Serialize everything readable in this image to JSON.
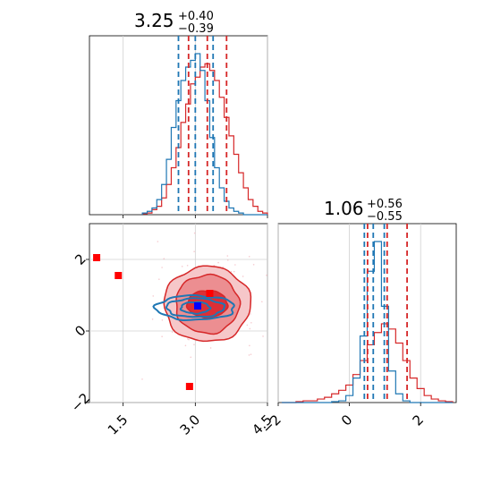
{
  "figure": {
    "background": "#ffffff",
    "colors": {
      "red": "#d62728",
      "blue": "#1f77b4",
      "marker_red": "#ff0000",
      "marker_blue": "#0000ff",
      "grid": "#d0d0d0"
    }
  },
  "chart_data": [
    {
      "type": "histogram",
      "panel": "top-left marginal (parameter 1)",
      "title": {
        "value": "3.25",
        "plus": "+0.40",
        "minus": "−0.39"
      },
      "xlim": [
        0.8,
        4.5
      ],
      "grid": true,
      "series": [
        {
          "color": "#d62728",
          "quantiles": [
            2.86,
            3.25,
            3.65
          ],
          "bin_centers": [
            1.95,
            2.05,
            2.15,
            2.25,
            2.35,
            2.45,
            2.55,
            2.65,
            2.75,
            2.85,
            2.95,
            3.05,
            3.15,
            3.25,
            3.35,
            3.45,
            3.55,
            3.65,
            3.75,
            3.85,
            3.95,
            4.05,
            4.15,
            4.25,
            4.35,
            4.45
          ],
          "counts": [
            0.5,
            1,
            3,
            5,
            10,
            18,
            28,
            40,
            55,
            66,
            78,
            82,
            88,
            90,
            86,
            80,
            70,
            58,
            47,
            36,
            25,
            16,
            9,
            5,
            2,
            1
          ]
        },
        {
          "color": "#1f77b4",
          "quantiles": [
            2.65,
            3.0,
            3.37
          ],
          "bin_centers": [
            1.95,
            2.05,
            2.15,
            2.25,
            2.35,
            2.45,
            2.55,
            2.65,
            2.75,
            2.85,
            2.95,
            3.05,
            3.15,
            3.25,
            3.35,
            3.45,
            3.55,
            3.65,
            3.75,
            3.85,
            3.95,
            4.05,
            4.15,
            4.25,
            4.35,
            4.45
          ],
          "counts": [
            1,
            2,
            4,
            9,
            18,
            33,
            52,
            68,
            80,
            88,
            92,
            96,
            86,
            68,
            46,
            28,
            16,
            8,
            4,
            2,
            1,
            0,
            0,
            0,
            0,
            0
          ]
        }
      ]
    },
    {
      "type": "histogram",
      "panel": "bottom-right marginal (parameter 2)",
      "title": {
        "value": "1.06",
        "plus": "+0.56",
        "minus": "−0.55"
      },
      "xlim": [
        -2.0,
        3.0
      ],
      "xticks": [
        "−2",
        "0",
        "2"
      ],
      "grid": true,
      "series": [
        {
          "color": "#d62728",
          "quantiles": [
            0.51,
            1.06,
            1.62
          ],
          "bin_centers": [
            -1.8,
            -1.6,
            -1.4,
            -1.2,
            -1.0,
            -0.8,
            -0.6,
            -0.4,
            -0.2,
            0.0,
            0.2,
            0.4,
            0.6,
            0.8,
            1.0,
            1.2,
            1.4,
            1.6,
            1.8,
            2.0,
            2.2,
            2.4,
            2.6,
            2.8
          ],
          "counts": [
            0,
            0,
            0.5,
            1,
            1,
            2,
            3,
            5,
            7,
            10,
            16,
            24,
            33,
            40,
            45,
            42,
            34,
            24,
            14,
            8,
            4,
            2,
            1,
            0.5
          ]
        },
        {
          "color": "#1f77b4",
          "quantiles": [
            0.42,
            0.67,
            0.98
          ],
          "bin_centers": [
            -1.8,
            -1.6,
            -1.4,
            -1.2,
            -1.0,
            -0.8,
            -0.6,
            -0.4,
            -0.2,
            0.0,
            0.2,
            0.4,
            0.6,
            0.8,
            1.0,
            1.2,
            1.4,
            1.6,
            1.8,
            2.0,
            2.2,
            2.4,
            2.6,
            2.8
          ],
          "counts": [
            0,
            0,
            0,
            0,
            0,
            0,
            0,
            0.5,
            1,
            4,
            14,
            38,
            75,
            92,
            55,
            18,
            5,
            1,
            0,
            0,
            0,
            0,
            0,
            0
          ]
        }
      ]
    },
    {
      "type": "contour",
      "panel": "bottom-left joint distribution",
      "xlim": [
        0.8,
        4.5
      ],
      "ylim": [
        -2.0,
        3.0
      ],
      "xticks": [
        "1.5",
        "3.0",
        "4.5"
      ],
      "yticks": [
        "−2",
        "0",
        "2"
      ],
      "grid": true,
      "red_center": [
        3.25,
        0.75
      ],
      "red_contour_radii": [
        [
          0.42,
          0.38
        ],
        [
          0.66,
          0.82
        ],
        [
          0.9,
          1.05
        ]
      ],
      "blue_center": [
        3.0,
        0.65
      ],
      "blue_contour_radii": [
        [
          0.3,
          0.16
        ],
        [
          0.6,
          0.26
        ],
        [
          0.82,
          0.34
        ]
      ],
      "red_markers": [
        [
          0.95,
          2.05
        ],
        [
          1.4,
          1.55
        ],
        [
          2.88,
          -1.55
        ],
        [
          3.3,
          1.05
        ]
      ],
      "blue_markers": [
        [
          3.05,
          0.7
        ]
      ]
    }
  ]
}
